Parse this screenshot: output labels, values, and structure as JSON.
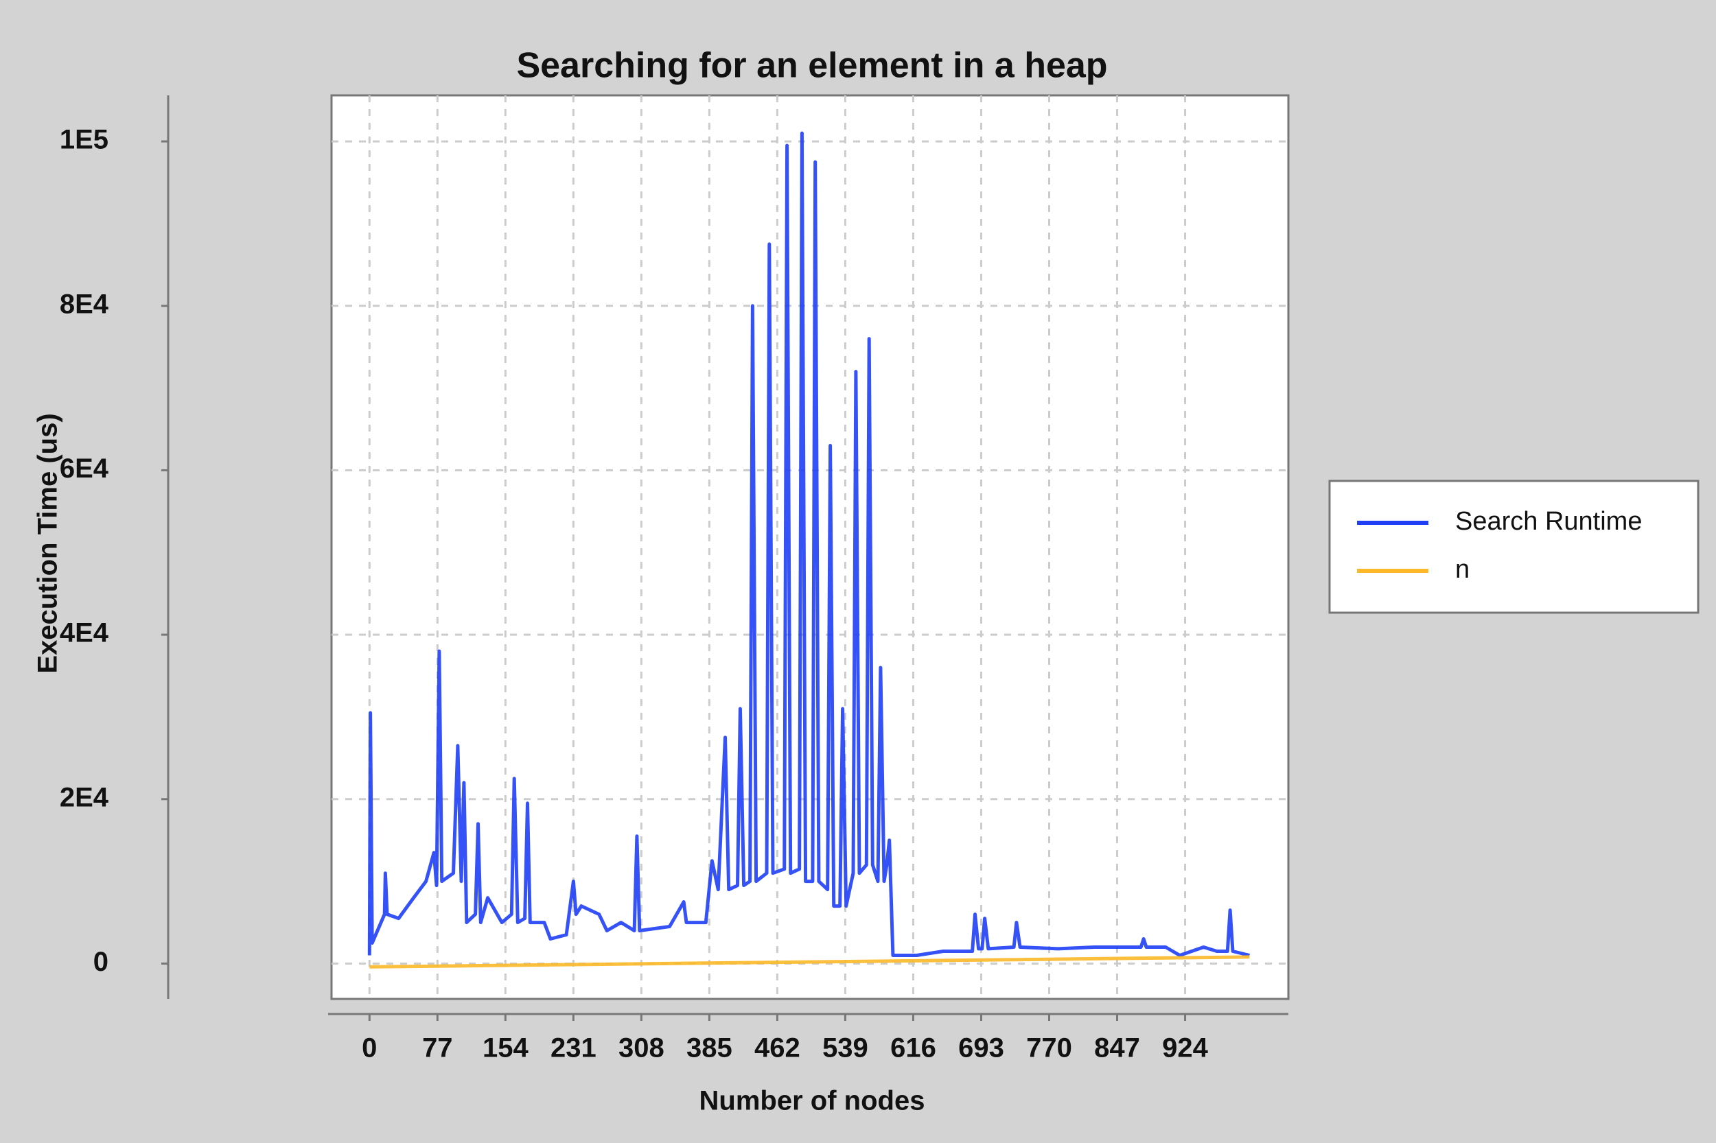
{
  "chart_data": {
    "type": "line",
    "title": "Searching for an element in a heap",
    "x_label": "Number of nodes",
    "y_label": "Execution Time (us)",
    "xlim": [
      -43,
      1041
    ],
    "ylim": [
      -4300,
      105600
    ],
    "xticks": [
      0,
      77,
      154,
      231,
      308,
      385,
      462,
      539,
      616,
      693,
      770,
      847,
      924
    ],
    "yticks": [
      0,
      {
        "value": 20000,
        "label": "2E4"
      },
      {
        "value": 40000,
        "label": "4E4"
      },
      {
        "value": 60000,
        "label": "6E4"
      },
      {
        "value": 80000,
        "label": "8E4"
      },
      {
        "value": 100000,
        "label": "1E5"
      }
    ],
    "grid": true,
    "legend": "right",
    "series": [
      {
        "name": "Search Runtime",
        "color": "#1f3ff5",
        "x": [
          0,
          1,
          3,
          17,
          18,
          20,
          33,
          50,
          64,
          73,
          76,
          79,
          82,
          95,
          100,
          104,
          107,
          110,
          120,
          123,
          126,
          134,
          150,
          161,
          164,
          168,
          176,
          179,
          182,
          198,
          205,
          223,
          231,
          234,
          240,
          260,
          269,
          285,
          300,
          303,
          306,
          340,
          356,
          359,
          381,
          388,
          395,
          403,
          407,
          417,
          420,
          424,
          431,
          434,
          438,
          450,
          453,
          457,
          470,
          473,
          477,
          487,
          490,
          494,
          502,
          505,
          509,
          519,
          522,
          526,
          533,
          536,
          540,
          548,
          551,
          555,
          563,
          566,
          570,
          576,
          579,
          583,
          586,
          589,
          593,
          620,
          650,
          683,
          686,
          690,
          694,
          697,
          701,
          730,
          733,
          737,
          780,
          821,
          874,
          877,
          880,
          902,
          918,
          945,
          960,
          972,
          975,
          978,
          997
        ],
        "values": [
          1000,
          30500,
          2500,
          6000,
          11000,
          6000,
          5500,
          8000,
          10000,
          13500,
          9500,
          38000,
          10000,
          11000,
          26500,
          10000,
          22000,
          5000,
          6000,
          17000,
          5000,
          8000,
          5000,
          6000,
          22500,
          5000,
          5500,
          19500,
          5000,
          5000,
          3000,
          3500,
          10000,
          6000,
          7000,
          6000,
          4000,
          5000,
          4000,
          15500,
          4000,
          4500,
          7500,
          5000,
          5000,
          12500,
          9000,
          27500,
          9000,
          9500,
          31000,
          9500,
          10000,
          80000,
          10000,
          11000,
          87500,
          11000,
          11500,
          99500,
          11000,
          11500,
          101000,
          10000,
          10000,
          97500,
          10000,
          9000,
          63000,
          7000,
          7000,
          31000,
          7000,
          11000,
          72000,
          11000,
          12000,
          76000,
          12000,
          10000,
          36000,
          10000,
          12000,
          15000,
          1000,
          1000,
          1500,
          1500,
          6000,
          1800,
          1800,
          5500,
          1800,
          2000,
          5000,
          2000,
          1800,
          2000,
          2000,
          3000,
          2000,
          2000,
          1000,
          2000,
          1500,
          1500,
          6500,
          1500,
          1000
        ]
      },
      {
        "name": "n",
        "color": "#fbb829",
        "x": [
          0,
          997
        ],
        "values": [
          -400,
          800
        ]
      }
    ]
  }
}
